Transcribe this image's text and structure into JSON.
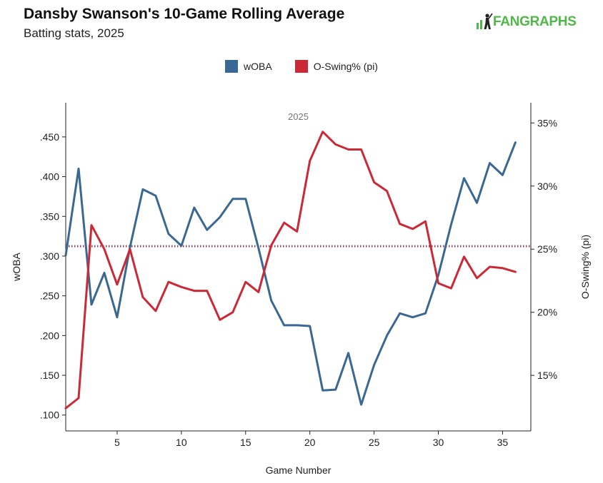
{
  "header": {
    "title": "Dansby Swanson's 10-Game Rolling Average",
    "subtitle": "Batting stats, 2025",
    "logo_text": "FANGRAPHS"
  },
  "colors": {
    "woba": "#3a6894",
    "oswing": "#cc2936",
    "logo_green": "#4fb848"
  },
  "chart_data": {
    "type": "line",
    "panel_label": "2025",
    "xlabel": "Game Number",
    "ylabel_left": "wOBA",
    "ylabel_right": "O-Swing% (pi)",
    "xlim": [
      1,
      37.2
    ],
    "ylim_left": [
      0.08,
      0.493
    ],
    "ylim_right": [
      10.6,
      36.6
    ],
    "x_ticks": [
      5,
      10,
      15,
      20,
      25,
      30,
      35
    ],
    "y_left_ticks": [
      0.1,
      0.15,
      0.2,
      0.25,
      0.3,
      0.35,
      0.4,
      0.45
    ],
    "y_left_tick_labels": [
      ".100",
      ".150",
      ".200",
      ".250",
      ".300",
      ".350",
      ".400",
      ".450"
    ],
    "y_right_ticks": [
      15,
      20,
      25,
      30,
      35
    ],
    "y_right_tick_labels": [
      "15%",
      "20%",
      "25%",
      "30%",
      "35%"
    ],
    "x": [
      1,
      2,
      3,
      4,
      5,
      6,
      7,
      8,
      9,
      10,
      11,
      12,
      13,
      14,
      15,
      16,
      17,
      18,
      19,
      20,
      21,
      22,
      23,
      24,
      25,
      26,
      27,
      28,
      29,
      30,
      31,
      32,
      33,
      34,
      35,
      36
    ],
    "series": [
      {
        "name": "wOBA",
        "axis": "left",
        "values": [
          0.301,
          0.41,
          0.239,
          0.279,
          0.223,
          0.311,
          0.384,
          0.376,
          0.328,
          0.313,
          0.361,
          0.333,
          0.349,
          0.372,
          0.372,
          0.31,
          0.244,
          0.213,
          0.213,
          0.212,
          0.131,
          0.132,
          0.178,
          0.113,
          0.163,
          0.2,
          0.228,
          0.223,
          0.228,
          0.276,
          0.34,
          0.398,
          0.367,
          0.417,
          0.402,
          0.443
        ],
        "average": 0.313
      },
      {
        "name": "O-Swing% (pi)",
        "axis": "right",
        "values": [
          12.4,
          13.2,
          26.9,
          25.0,
          22.2,
          25.0,
          21.2,
          20.1,
          22.4,
          22.0,
          21.7,
          21.7,
          19.4,
          20.0,
          22.4,
          21.6,
          25.3,
          27.1,
          26.4,
          32.0,
          34.3,
          33.3,
          32.9,
          32.9,
          30.3,
          29.6,
          27.0,
          26.6,
          27.2,
          22.3,
          21.9,
          24.4,
          22.7,
          23.6,
          23.5,
          23.2
        ],
        "average": 25.2
      }
    ]
  }
}
